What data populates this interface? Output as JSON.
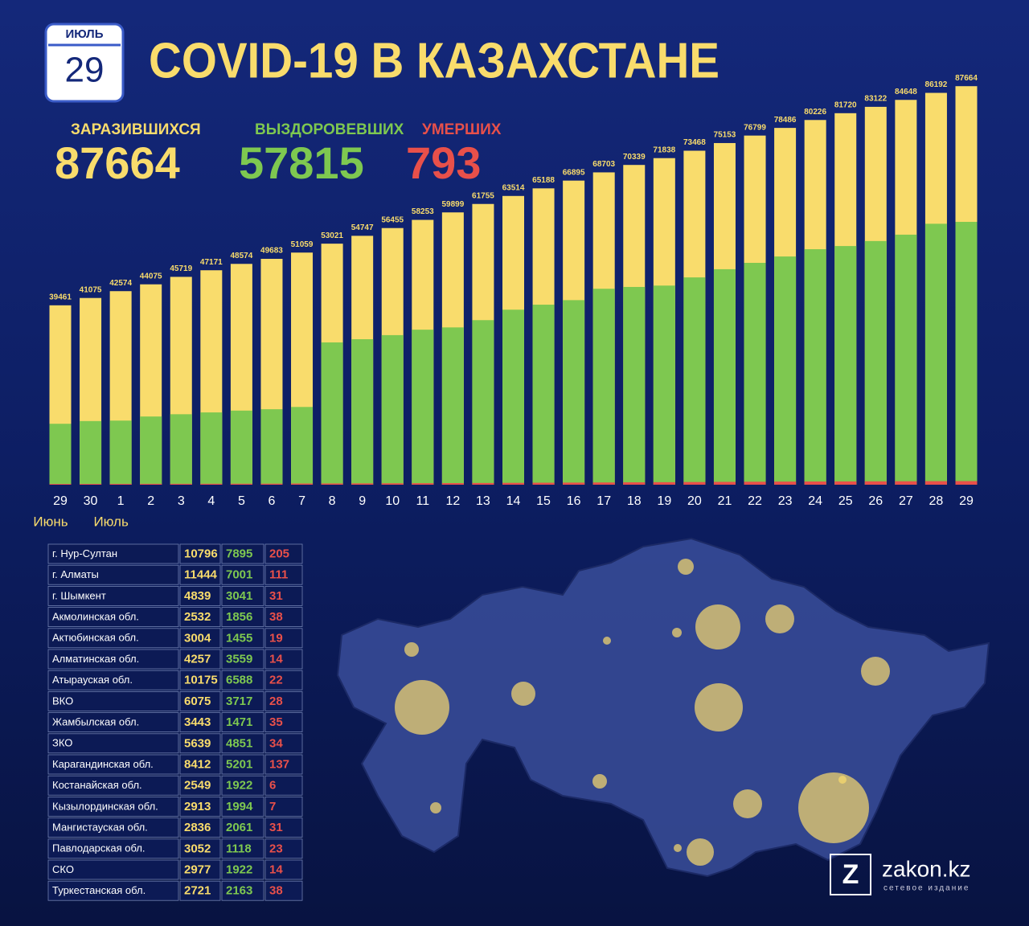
{
  "header": {
    "month": "ИЮЛЬ",
    "day": "29",
    "title": "COVID-19 В КАЗАХСТАНЕ"
  },
  "totals": [
    87664,
    57815,
    793
  ],
  "chart_data": {
    "type": "bar",
    "categories": [
      "29",
      "30",
      "1",
      "2",
      "3",
      "4",
      "5",
      "6",
      "7",
      "8",
      "9",
      "10",
      "11",
      "12",
      "13",
      "14",
      "15",
      "16",
      "17",
      "18",
      "19",
      "20",
      "21",
      "22",
      "23",
      "24",
      "25",
      "26",
      "27",
      "28",
      "29"
    ],
    "month_labels": [
      "Июнь",
      "Июль"
    ],
    "ylim": [
      0,
      90000
    ],
    "series": [
      {
        "name": "ЗАРАЗИВШИХСЯ",
        "color": "#f9dc6c",
        "values": [
          39461,
          41075,
          42574,
          44075,
          45719,
          47171,
          48574,
          49683,
          51059,
          53021,
          54747,
          56455,
          58253,
          59899,
          61755,
          63514,
          65188,
          66895,
          68703,
          70339,
          71838,
          73468,
          75153,
          76799,
          78486,
          80226,
          81720,
          83122,
          84648,
          86192,
          87664
        ]
      },
      {
        "name": "ВЫЗДОРОВЕВШИХ",
        "color": "#7ec850",
        "values": [
          13400,
          14000,
          14100,
          15000,
          15500,
          15900,
          16300,
          16600,
          17100,
          31300,
          32000,
          32900,
          34100,
          34600,
          36200,
          38500,
          39600,
          40600,
          43100,
          43500,
          43800,
          45600,
          47400,
          48800,
          50200,
          51800,
          52500,
          53600,
          55000,
          57400,
          57815
        ]
      },
      {
        "name": "УМЕРШИХ",
        "color": "#e8504a",
        "values": [
          170,
          181,
          188,
          196,
          200,
          210,
          220,
          230,
          264,
          275,
          290,
          310,
          330,
          350,
          375,
          405,
          435,
          460,
          490,
          520,
          550,
          585,
          620,
          650,
          680,
          700,
          720,
          740,
          760,
          780,
          793
        ]
      }
    ]
  },
  "table": {
    "rows": [
      [
        "г. Нур-Султан",
        10796,
        7895,
        205
      ],
      [
        "г. Алматы",
        11444,
        7001,
        111
      ],
      [
        "г. Шымкент",
        4839,
        3041,
        31
      ],
      [
        "Акмолинская обл.",
        2532,
        1856,
        38
      ],
      [
        "Актюбинская обл.",
        3004,
        1455,
        19
      ],
      [
        "Алматинская обл.",
        4257,
        3559,
        14
      ],
      [
        "Атырауская обл.",
        10175,
        6588,
        22
      ],
      [
        "ВКО",
        6075,
        3717,
        28
      ],
      [
        "Жамбылская обл.",
        3443,
        1471,
        35
      ],
      [
        "ЗКО",
        5639,
        4851,
        34
      ],
      [
        "Карагандинская обл.",
        8412,
        5201,
        137
      ],
      [
        "Костанайская обл.",
        2549,
        1922,
        6
      ],
      [
        "Кызылординская обл.",
        2913,
        1994,
        7
      ],
      [
        "Мангистауская обл.",
        2836,
        2061,
        31
      ],
      [
        "Павлодарская обл.",
        3052,
        1118,
        23
      ],
      [
        "СКО",
        2977,
        1922,
        14
      ],
      [
        "Туркестанская обл.",
        2721,
        2163,
        38
      ]
    ]
  },
  "brand": {
    "logo": "Z",
    "name": "zakon.kz",
    "tagline": "сетевое издание"
  }
}
